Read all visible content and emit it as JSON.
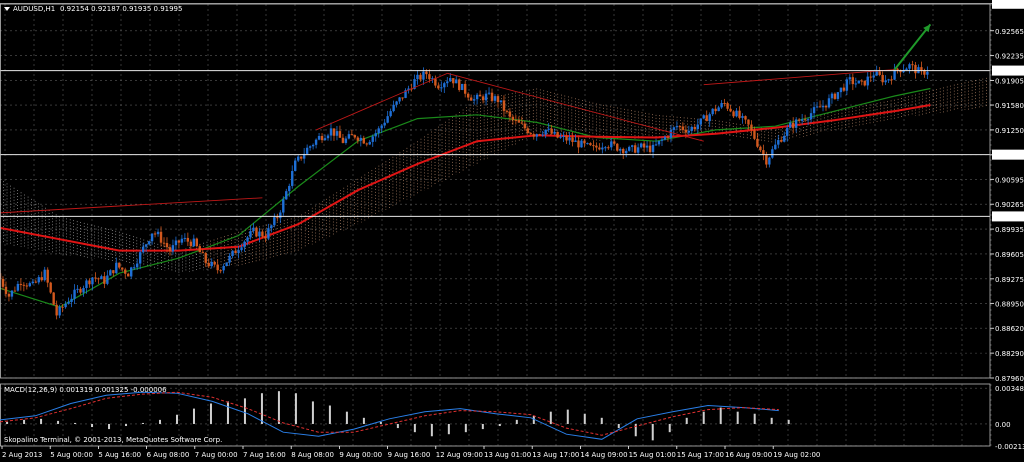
{
  "window": {
    "symbol_label": "AUDUSD,H1",
    "ohlc_label": "0.92154 0.92187 0.91935 0.91995",
    "watermark": "Skopalino Terminal, © 2001-2013, MetaQuotes Software Corp."
  },
  "colors": {
    "background": "#000000",
    "grid": "#5a5a5a",
    "bull_candle": "#1e6fd6",
    "bear_candle": "#d2581e",
    "ma_slow": "#e01414",
    "ma_fast": "#1a8a1a",
    "cloud": "#f0b48c",
    "cloud_early": "#d8d8d8",
    "trendline": "#c01818",
    "arrow": "#1f9a2a",
    "macd_hist": "#d0d0d0",
    "macd_line": "#2a7fe8",
    "signal_line": "#e03030"
  },
  "chart_data": [
    {
      "type": "candlestick",
      "title": "AUDUSD,H1",
      "ohlc_text": "0.92154 0.92187 0.91935 0.91995",
      "ylim": [
        0.8796,
        0.9292
      ],
      "y_ticks": [
        "0.92923",
        "0.92565",
        "0.92235",
        "0.91905",
        "0.91580",
        "0.91250",
        "0.90920",
        "0.90595",
        "0.90265",
        "0.89935",
        "0.89605",
        "0.89275",
        "0.88950",
        "0.88620",
        "0.88290",
        "0.87960"
      ],
      "x_ticks": [
        "2 Aug 2013",
        "5 Aug 00:00",
        "5 Aug 16:00",
        "6 Aug 08:00",
        "7 Aug 00:00",
        "7 Aug 16:00",
        "8 Aug 08:00",
        "9 Aug 00:00",
        "9 Aug 16:00",
        "12 Aug 09:00",
        "13 Aug 01:00",
        "13 Aug 17:00",
        "14 Aug 09:00",
        "15 Aug 01:00",
        "15 Aug 17:00",
        "16 Aug 09:00",
        "19 Aug 02:00"
      ],
      "horizontal_levels": [
        "0.92923",
        "0.92037",
        "0.90922",
        "0.90103"
      ],
      "price_path": [
        [
          0,
          0.8935
        ],
        [
          4,
          0.8905
        ],
        [
          8,
          0.8925
        ],
        [
          12,
          0.8918
        ],
        [
          16,
          0.8935
        ],
        [
          20,
          0.888
        ],
        [
          24,
          0.89
        ],
        [
          28,
          0.8915
        ],
        [
          32,
          0.893
        ],
        [
          36,
          0.8925
        ],
        [
          40,
          0.8945
        ],
        [
          44,
          0.8935
        ],
        [
          48,
          0.896
        ],
        [
          52,
          0.899
        ],
        [
          54,
          0.8985
        ],
        [
          58,
          0.8965
        ],
        [
          62,
          0.898
        ],
        [
          66,
          0.8975
        ],
        [
          70,
          0.895
        ],
        [
          74,
          0.894
        ],
        [
          78,
          0.8955
        ],
        [
          82,
          0.8975
        ],
        [
          86,
          0.899
        ],
        [
          90,
          0.8985
        ],
        [
          94,
          0.901
        ],
        [
          96,
          0.903
        ],
        [
          100,
          0.908
        ],
        [
          104,
          0.91
        ],
        [
          108,
          0.9115
        ],
        [
          112,
          0.9125
        ],
        [
          116,
          0.911
        ],
        [
          120,
          0.9118
        ],
        [
          124,
          0.911
        ],
        [
          128,
          0.9125
        ],
        [
          132,
          0.915
        ],
        [
          136,
          0.917
        ],
        [
          140,
          0.919
        ],
        [
          144,
          0.92
        ],
        [
          148,
          0.9185
        ],
        [
          152,
          0.9195
        ],
        [
          156,
          0.918
        ],
        [
          160,
          0.9165
        ],
        [
          164,
          0.917
        ],
        [
          168,
          0.9165
        ],
        [
          172,
          0.914
        ],
        [
          176,
          0.913
        ],
        [
          180,
          0.912
        ],
        [
          184,
          0.9125
        ],
        [
          188,
          0.9115
        ],
        [
          192,
          0.9112
        ],
        [
          196,
          0.9105
        ],
        [
          200,
          0.91
        ],
        [
          204,
          0.9108
        ],
        [
          208,
          0.9102
        ],
        [
          212,
          0.9098
        ],
        [
          216,
          0.9102
        ],
        [
          220,
          0.91
        ],
        [
          224,
          0.9115
        ],
        [
          228,
          0.913
        ],
        [
          232,
          0.9125
        ],
        [
          236,
          0.9135
        ],
        [
          240,
          0.915
        ],
        [
          244,
          0.916
        ],
        [
          248,
          0.9145
        ],
        [
          252,
          0.913
        ],
        [
          256,
          0.91
        ],
        [
          258,
          0.9085
        ],
        [
          262,
          0.911
        ],
        [
          266,
          0.913
        ],
        [
          270,
          0.914
        ],
        [
          274,
          0.915
        ],
        [
          278,
          0.916
        ],
        [
          282,
          0.9175
        ],
        [
          286,
          0.919
        ],
        [
          290,
          0.9185
        ],
        [
          294,
          0.92
        ],
        [
          298,
          0.919
        ],
        [
          302,
          0.9205
        ],
        [
          306,
          0.921
        ],
        [
          310,
          0.92
        ],
        [
          312,
          0.9205
        ]
      ],
      "series": [
        {
          "values": [
            [
              0,
              0.8995
            ],
            [
              40,
              0.8965
            ],
            [
              60,
              0.8965
            ],
            [
              80,
              0.897
            ],
            [
              100,
              0.9
            ],
            [
              120,
              0.9045
            ],
            [
              140,
              0.908
            ],
            [
              160,
              0.911
            ],
            [
              180,
              0.9118
            ],
            [
              200,
              0.9116
            ],
            [
              220,
              0.9115
            ],
            [
              240,
              0.912
            ],
            [
              260,
              0.9128
            ],
            [
              280,
              0.9138
            ],
            [
              300,
              0.915
            ],
            [
              312,
              0.9158
            ]
          ]
        },
        {
          "values": [
            [
              0,
              0.8915
            ],
            [
              20,
              0.889
            ],
            [
              40,
              0.8935
            ],
            [
              60,
              0.8955
            ],
            [
              80,
              0.8985
            ],
            [
              100,
              0.905
            ],
            [
              120,
              0.911
            ],
            [
              140,
              0.914
            ],
            [
              160,
              0.9145
            ],
            [
              180,
              0.9135
            ],
            [
              200,
              0.9115
            ],
            [
              220,
              0.911
            ],
            [
              240,
              0.9125
            ],
            [
              260,
              0.913
            ],
            [
              280,
              0.915
            ],
            [
              300,
              0.917
            ],
            [
              312,
              0.918
            ]
          ]
        }
      ],
      "cloud": [
        [
          0,
          0.906,
          0.8975
        ],
        [
          20,
          0.901,
          0.896
        ],
        [
          40,
          0.899,
          0.895
        ],
        [
          60,
          0.8965,
          0.8935
        ],
        [
          80,
          0.899,
          0.8945
        ],
        [
          100,
          0.901,
          0.8965
        ],
        [
          120,
          0.906,
          0.9
        ],
        [
          140,
          0.911,
          0.904
        ],
        [
          160,
          0.9165,
          0.908
        ],
        [
          180,
          0.918,
          0.912
        ],
        [
          200,
          0.916,
          0.911
        ],
        [
          220,
          0.9145,
          0.9115
        ],
        [
          240,
          0.9138,
          0.912
        ],
        [
          260,
          0.9125,
          0.9108
        ],
        [
          280,
          0.915,
          0.9125
        ],
        [
          300,
          0.9165,
          0.914
        ],
        [
          320,
          0.9185,
          0.915
        ],
        [
          332,
          0.9195,
          0.9155
        ]
      ],
      "trendlines": [
        [
          [
            0,
            0.9015
          ],
          [
            88,
            0.9035
          ]
        ],
        [
          [
            106,
            0.9125
          ],
          [
            150,
            0.92
          ]
        ],
        [
          [
            236,
            0.9185
          ],
          [
            300,
            0.9205
          ]
        ],
        [
          [
            150,
            0.92
          ],
          [
            236,
            0.911
          ]
        ]
      ],
      "arrow": [
        [
          300,
          0.9205
        ],
        [
          312,
          0.9265
        ]
      ]
    },
    {
      "type": "line",
      "title": "MACD(12,26,9) 0.001319 0.001325 -0.000006",
      "ylim": [
        -0.00215,
        0.0039
      ],
      "y_ticks": [
        "0.003489",
        "0.00",
        "-0.002132"
      ],
      "histogram": [
        0.0002,
        0.0004,
        0.0005,
        0.0003,
        0.0001,
        -0.0003,
        -0.0005,
        -0.0002,
        0.0001,
        0.0004,
        0.0009,
        0.0015,
        0.002,
        0.0022,
        0.0025,
        0.003,
        0.0032,
        0.003,
        0.0022,
        0.0018,
        0.0012,
        0.0006,
        0.0002,
        -0.0004,
        -0.0008,
        -0.0012,
        -0.001,
        -0.0008,
        -0.0005,
        -0.0002,
        0.0004,
        0.0008,
        0.0012,
        0.0014,
        0.001,
        0.0006,
        -0.0004,
        -0.0012,
        -0.0016,
        -0.0008,
        0.0006,
        0.0012,
        0.0016,
        0.0012,
        0.001,
        0.0006,
        0.0004
      ],
      "series": [
        {
          "values": [
            [
              0,
              0.0004
            ],
            [
              10,
              0.0008
            ],
            [
              20,
              0.002
            ],
            [
              30,
              0.0028
            ],
            [
              40,
              0.0031
            ],
            [
              50,
              0.003
            ],
            [
              60,
              0.0022
            ],
            [
              70,
              0.001
            ],
            [
              80,
              -0.0008
            ],
            [
              90,
              -0.0012
            ],
            [
              100,
              -0.0005
            ],
            [
              110,
              0.0005
            ],
            [
              120,
              0.0012
            ],
            [
              130,
              0.0015
            ],
            [
              140,
              0.001
            ],
            [
              150,
              0.0006
            ],
            [
              160,
              -0.001
            ],
            [
              170,
              -0.0015
            ],
            [
              180,
              0.0005
            ],
            [
              190,
              0.0012
            ],
            [
              200,
              0.0018
            ],
            [
              210,
              0.0016
            ],
            [
              220,
              0.0013
            ]
          ]
        },
        {
          "values": [
            [
              0,
              0.0002
            ],
            [
              10,
              0.0006
            ],
            [
              20,
              0.0015
            ],
            [
              30,
              0.0025
            ],
            [
              40,
              0.0029
            ],
            [
              50,
              0.0031
            ],
            [
              60,
              0.0026
            ],
            [
              70,
              0.0015
            ],
            [
              80,
              0.0001
            ],
            [
              90,
              -0.0008
            ],
            [
              100,
              -0.0008
            ],
            [
              110,
              0.0
            ],
            [
              120,
              0.0008
            ],
            [
              130,
              0.0013
            ],
            [
              140,
              0.0012
            ],
            [
              150,
              0.0009
            ],
            [
              160,
              -0.0004
            ],
            [
              170,
              -0.0011
            ],
            [
              180,
              -0.0002
            ],
            [
              190,
              0.0007
            ],
            [
              200,
              0.0014
            ],
            [
              210,
              0.0016
            ],
            [
              220,
              0.0014
            ]
          ]
        }
      ]
    }
  ]
}
